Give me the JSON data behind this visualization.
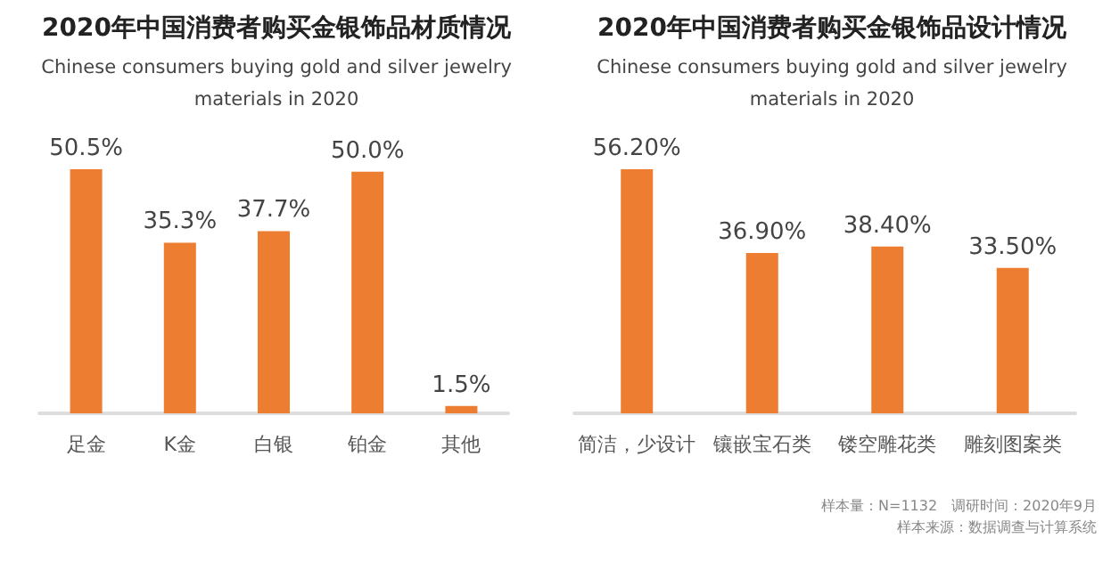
{
  "chart_data": [
    {
      "type": "bar",
      "title": "2020年中国消费者购买金银饰品材质情况",
      "subtitle": "Chinese consumers buying gold and silver jewelry\nmaterials in 2020",
      "categories": [
        "足金",
        "K金",
        "白银",
        "铂金",
        "其他"
      ],
      "series": [
        {
          "color": "#ed7d31",
          "values": [
            50.5,
            35.3,
            37.7,
            50.0,
            1.5
          ],
          "value_labels": [
            "50.5%",
            "35.3%",
            "37.7%",
            "50.0%",
            "1.5%"
          ]
        }
      ]
    },
    {
      "type": "bar",
      "title": "2020年中国消费者购买金银饰品设计情况",
      "subtitle": "Chinese consumers buying gold and silver jewelry\nmaterials in 2020",
      "categories": [
        "简洁，少设计",
        "镶嵌宝石类",
        "镂空雕花类",
        "雕刻图案类"
      ],
      "series": [
        {
          "color": "#ed7d31",
          "values": [
            56.2,
            36.9,
            38.4,
            33.5
          ],
          "value_labels": [
            "56.20%",
            "36.90%",
            "38.40%",
            "33.50%"
          ]
        }
      ],
      "annotations": [
        "样本量：N=1132　调研时间：2020年9月",
        "样本来源：数据调查与计算系统"
      ]
    }
  ]
}
